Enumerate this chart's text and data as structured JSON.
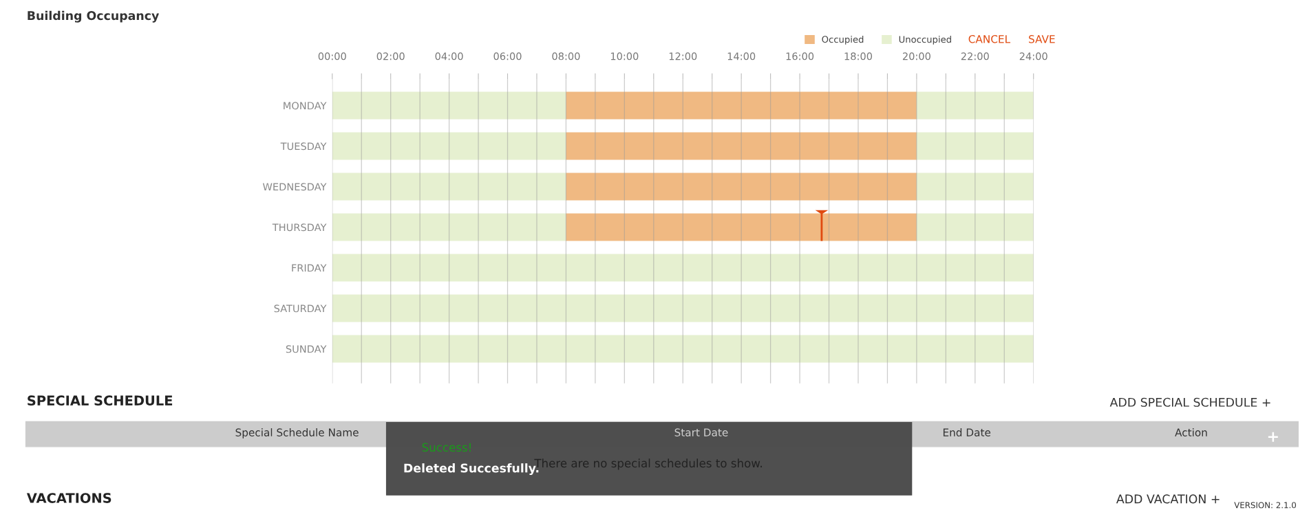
{
  "chart_data": {
    "type": "bar",
    "orientation": "horizontal",
    "stacked": true,
    "title": "Building Occupancy",
    "categories": [
      "MONDAY",
      "TUESDAY",
      "WEDNESDAY",
      "THURSDAY",
      "FRIDAY",
      "SATURDAY",
      "SUNDAY"
    ],
    "series": [
      {
        "name": "Unoccupied",
        "color": "#e6f0d0",
        "values": [
          8,
          8,
          8,
          8,
          24,
          24,
          24
        ]
      },
      {
        "name": "Occupied",
        "color": "#f0b982",
        "values": [
          12,
          12,
          12,
          12,
          0,
          0,
          0
        ]
      },
      {
        "color": "#e6f0d0",
        "values": [
          4,
          4,
          4,
          4,
          0,
          0,
          0
        ]
      }
    ],
    "xlim": [
      0,
      24
    ],
    "xticks": [
      {
        "value": 0,
        "label": "00:00"
      },
      {
        "value": 1,
        "label": null
      },
      {
        "value": 2,
        "label": "02:00"
      },
      {
        "value": 3,
        "label": null
      },
      {
        "value": 4,
        "label": "04:00"
      },
      {
        "value": 5,
        "label": null
      },
      {
        "value": 6,
        "label": "06:00"
      },
      {
        "value": 7,
        "label": null
      },
      {
        "value": 8,
        "label": "08:00"
      },
      {
        "value": 9,
        "label": null
      },
      {
        "value": 10,
        "label": "10:00"
      },
      {
        "value": 11,
        "label": null
      },
      {
        "value": 12,
        "label": "12:00"
      },
      {
        "value": 13,
        "label": null
      },
      {
        "value": 14,
        "label": "14:00"
      },
      {
        "value": 15,
        "label": null
      },
      {
        "value": 16,
        "label": "16:00"
      },
      {
        "value": 17,
        "label": null
      },
      {
        "value": 18,
        "label": "18:00"
      },
      {
        "value": 19,
        "label": null
      },
      {
        "value": 20,
        "label": "20:00"
      },
      {
        "value": 21,
        "label": null
      },
      {
        "value": 22,
        "label": "22:00"
      },
      {
        "value": 23,
        "label": null
      },
      {
        "value": 24,
        "label": "24:00"
      }
    ],
    "grid": "x",
    "legend": "top right",
    "ref_lines": [
      {
        "axis": "x",
        "value": 16.75,
        "color": "#e04a10"
      }
    ],
    "annotations": [
      "CANCEL",
      "SAVE",
      "SPECIAL SCHEDULE",
      "ADD SPECIAL SCHEDULE +",
      "Special Schedule Name",
      "Start Date",
      "End Date",
      "Action",
      "There are no special schedules to show.",
      "Success!",
      "Deleted Succesfully.",
      "VACATIONS",
      "ADD VACATION +",
      "VERSION: 2.1.0",
      "+"
    ]
  }
}
